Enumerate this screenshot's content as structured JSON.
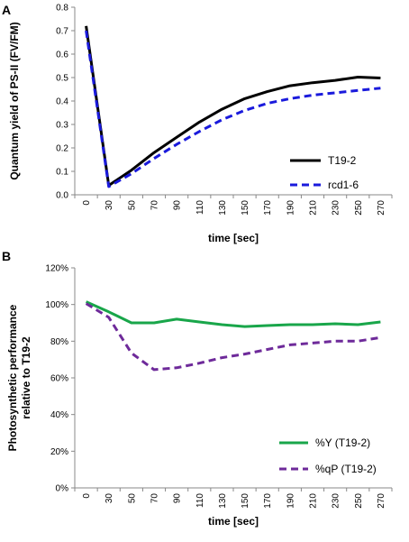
{
  "chart_data": [
    {
      "type": "line",
      "panel_label": "A",
      "xlabel": "time [sec]",
      "ylabel": "Quantum yield of PS-II (FV/FM)",
      "x": [
        0,
        30,
        50,
        70,
        90,
        110,
        130,
        150,
        170,
        190,
        210,
        230,
        250,
        270
      ],
      "ylim": [
        0,
        0.8
      ],
      "yticks": [
        "0.0",
        "0.1",
        "0.2",
        "0.3",
        "0.4",
        "0.5",
        "0.6",
        "0.7",
        "0.8"
      ],
      "grid": false,
      "legend_position": "bottom-right",
      "series": [
        {
          "name": "T19-2",
          "color": "#000000",
          "dash": "solid",
          "values": [
            0.72,
            0.04,
            0.105,
            0.18,
            0.245,
            0.31,
            0.365,
            0.41,
            0.44,
            0.465,
            0.478,
            0.488,
            0.502,
            0.498
          ]
        },
        {
          "name": "rcd1-6",
          "color": "#1a1adc",
          "dash": "dashed",
          "values": [
            0.7,
            0.035,
            0.09,
            0.155,
            0.215,
            0.27,
            0.32,
            0.36,
            0.39,
            0.41,
            0.425,
            0.435,
            0.445,
            0.455
          ]
        }
      ]
    },
    {
      "type": "line",
      "panel_label": "B",
      "xlabel": "time [sec]",
      "ylabel_lines": [
        "Photosynthetic performance",
        "relative to T19-2"
      ],
      "x": [
        0,
        30,
        50,
        70,
        90,
        110,
        130,
        150,
        170,
        190,
        210,
        230,
        250,
        270
      ],
      "ylim": [
        0,
        120
      ],
      "yticks": [
        "0%",
        "20%",
        "40%",
        "60%",
        "80%",
        "100%",
        "120%"
      ],
      "grid": false,
      "legend_position": "bottom-right",
      "series": [
        {
          "name": "%Y (T19-2)",
          "color": "#19a64a",
          "dash": "solid",
          "values": [
            101.5,
            96,
            90,
            90,
            92,
            90.5,
            89,
            88,
            88.5,
            89,
            89,
            89.5,
            89,
            90.5
          ]
        },
        {
          "name": "%qP (T19-2)",
          "color": "#6e2a9a",
          "dash": "dashed",
          "values": [
            100.5,
            93,
            73.5,
            64.5,
            65.5,
            68,
            71,
            73,
            75.5,
            78,
            79,
            80,
            80,
            82
          ]
        }
      ]
    }
  ]
}
